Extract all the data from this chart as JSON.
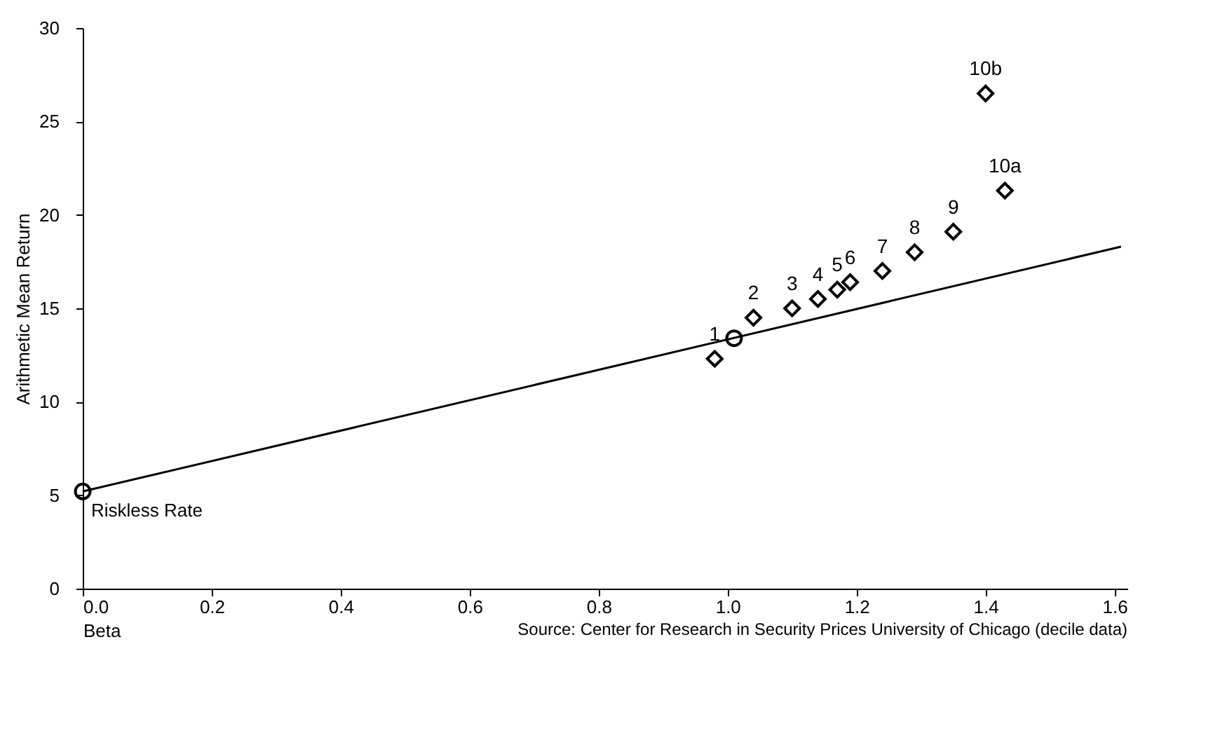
{
  "chart_data": {
    "type": "scatter",
    "xlabel": "Beta",
    "ylabel": "Arithmetic Mean Return",
    "xlim": [
      0,
      1.62
    ],
    "ylim": [
      0,
      30
    ],
    "xticks": [
      {
        "value": 0,
        "label": "0.0"
      },
      {
        "value": 0.2,
        "label": "0.2"
      },
      {
        "value": 0.4,
        "label": "0.4"
      },
      {
        "value": 0.6,
        "label": "0.6"
      },
      {
        "value": 0.8,
        "label": "0.8"
      },
      {
        "value": 1.0,
        "label": "1.0"
      },
      {
        "value": 1.2,
        "label": "1.2"
      },
      {
        "value": 1.4,
        "label": "1.4"
      },
      {
        "value": 1.6,
        "label": "1.6"
      }
    ],
    "yticks": [
      0,
      5,
      10,
      15,
      20,
      25,
      30
    ],
    "grid": false,
    "series": [
      {
        "type": "line",
        "color": "#000000",
        "line_style": "solid",
        "marker": "none",
        "x": [
          0,
          1.61
        ],
        "values": [
          5.2,
          18.3
        ]
      },
      {
        "color": "#000000",
        "marker": "circle",
        "x": [
          0,
          1.01
        ],
        "values": [
          5.2,
          13.4
        ]
      },
      {
        "color": "#000000",
        "marker": "diamond",
        "x": [
          0.98,
          1.04,
          1.1,
          1.14,
          1.17,
          1.19,
          1.24,
          1.29,
          1.35,
          1.43,
          1.4
        ],
        "values": [
          12.3,
          14.5,
          15.0,
          15.5,
          16.0,
          16.4,
          17.0,
          18.0,
          19.1,
          21.3,
          26.5
        ]
      }
    ],
    "annotations": [
      {
        "text": "Riskless Rate",
        "x": 0,
        "y": 5.2
      },
      {
        "text": "1",
        "x": 0.98,
        "y": 12.3
      },
      {
        "text": "2",
        "x": 1.04,
        "y": 14.5
      },
      {
        "text": "3",
        "x": 1.1,
        "y": 15.0
      },
      {
        "text": "4",
        "x": 1.14,
        "y": 15.5
      },
      {
        "text": "5",
        "x": 1.17,
        "y": 16.0
      },
      {
        "text": "6",
        "x": 1.19,
        "y": 16.4
      },
      {
        "text": "7",
        "x": 1.24,
        "y": 17.0
      },
      {
        "text": "8",
        "x": 1.29,
        "y": 18.0
      },
      {
        "text": "9",
        "x": 1.35,
        "y": 19.1
      },
      {
        "text": "10a",
        "x": 1.43,
        "y": 21.3
      },
      {
        "text": "10b",
        "x": 1.4,
        "y": 26.5
      },
      "Source: Center for Research in Security Prices  University of Chicago (decile data)"
    ]
  }
}
